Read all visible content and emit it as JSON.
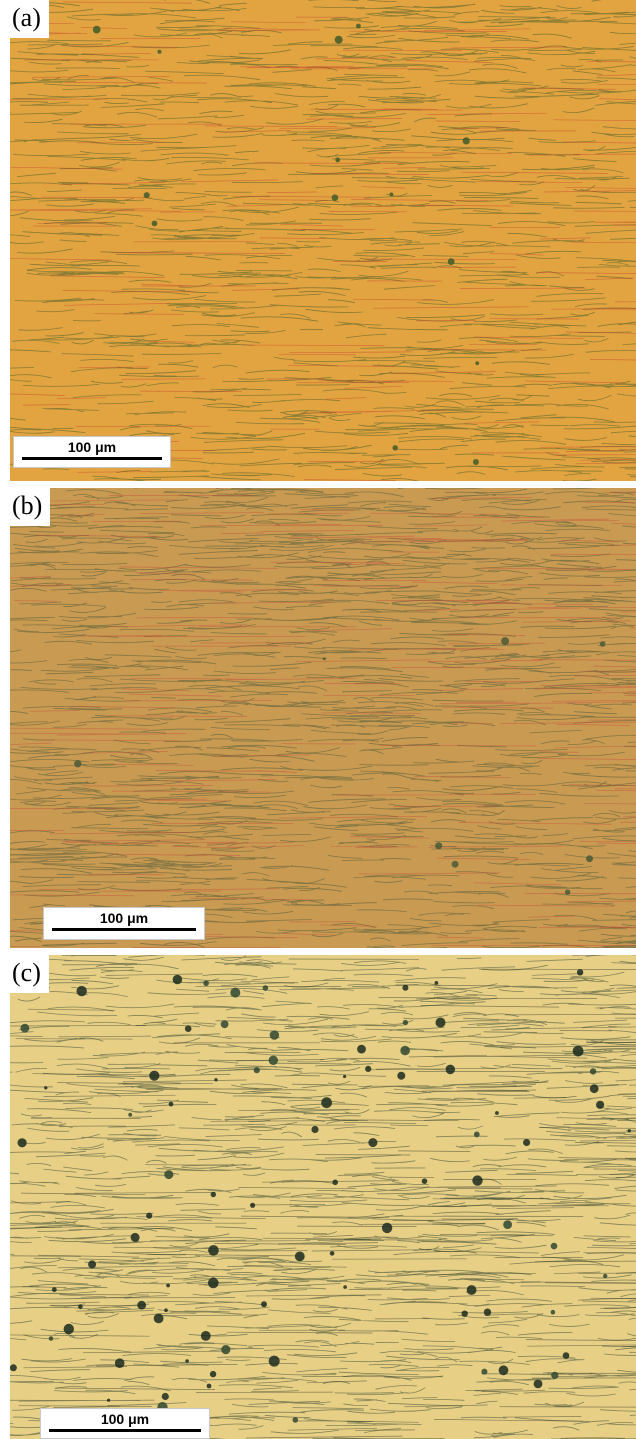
{
  "panels": [
    {
      "label": "(a)",
      "scale_text": "100 μm",
      "base_color": "#e2a440",
      "line_color": "#3f5b2a",
      "accent_color": "#c33a2e"
    },
    {
      "label": "(b)",
      "scale_text": "100 μm",
      "base_color": "#c99a52",
      "line_color": "#4a5a38",
      "accent_color": "#c8463a"
    },
    {
      "label": "(c)",
      "scale_text": "100 μm",
      "base_color": "#e8cf86",
      "line_color": "#2f4630",
      "accent_color": "#1a2a1e"
    }
  ]
}
